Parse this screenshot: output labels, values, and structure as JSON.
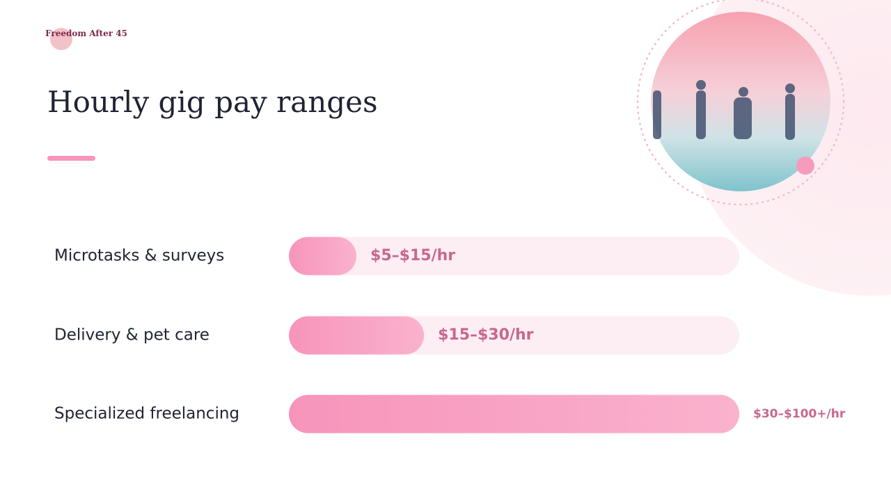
{
  "logo": "Freedom After 45",
  "chart_data": {
    "type": "hbar",
    "title": "Hourly gig pay ranges",
    "categories": [
      "Microtasks & surveys",
      "Delivery & pet care",
      "Specialized freelancing"
    ],
    "values": [
      15,
      30,
      100
    ],
    "value_labels": [
      "$5–$15/hr",
      "$15–$30/hr",
      "$30–$100+/hr"
    ],
    "xlim": [
      0,
      100
    ],
    "color": "#f794bb"
  }
}
